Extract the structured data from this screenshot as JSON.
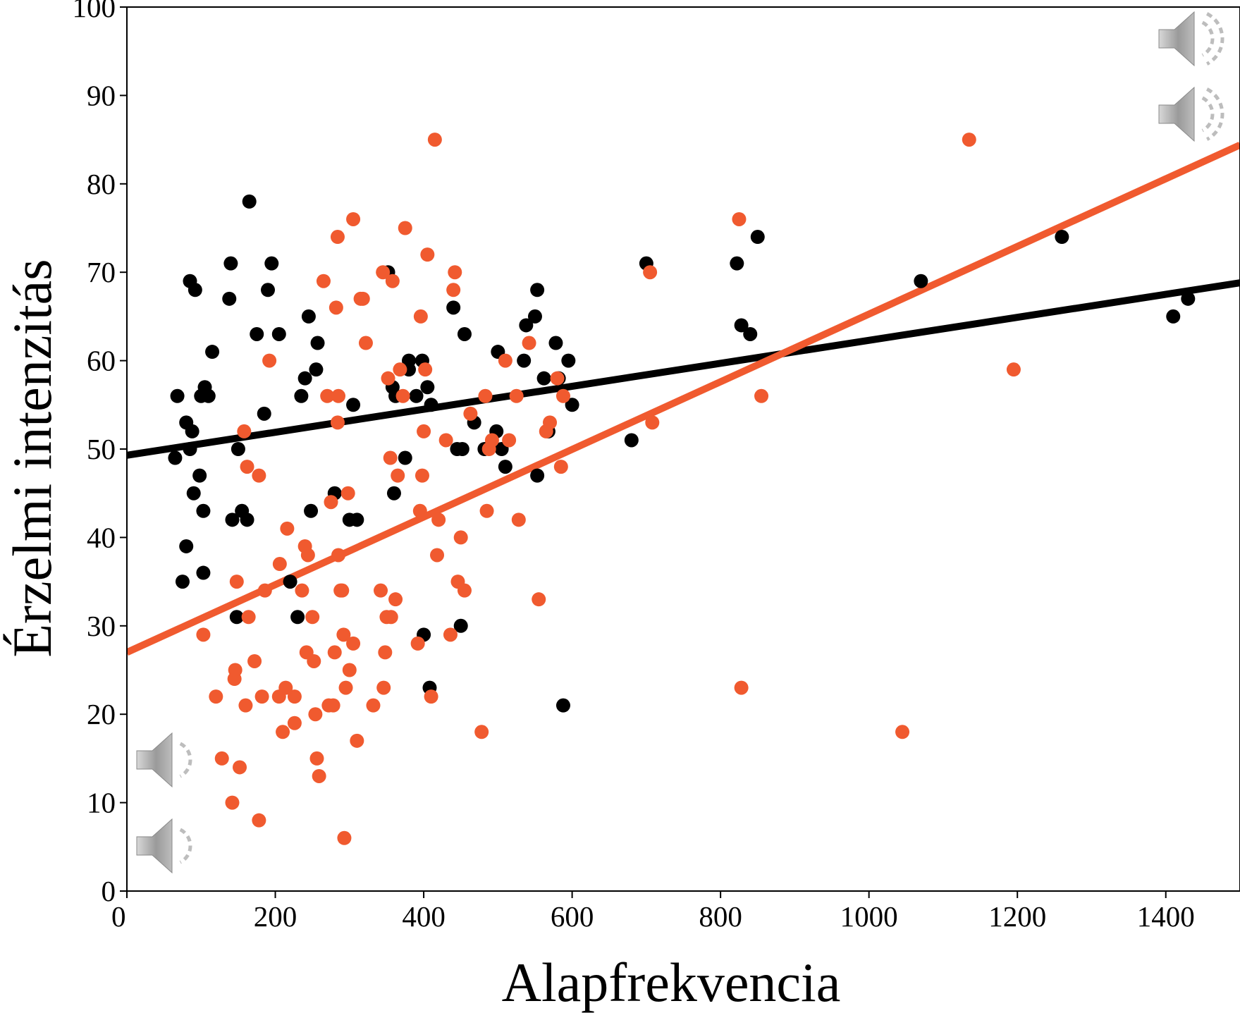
{
  "chart_data": {
    "type": "scatter",
    "xlabel": "Alapfrekvencia",
    "ylabel": "Érzelmi intenzitás",
    "xlim": [
      0,
      1500
    ],
    "ylim": [
      0,
      100
    ],
    "xticks": [
      "0",
      "200",
      "400",
      "600",
      "800",
      "1000",
      "1200",
      "1400"
    ],
    "yticks": [
      "0",
      "10",
      "20",
      "30",
      "40",
      "50",
      "60",
      "70",
      "80",
      "90",
      "100"
    ],
    "grid": false,
    "legend": "none",
    "colors": {
      "black_series": "#000000",
      "orange_series": "#f05a2f",
      "icon": "#a8a8a8"
    },
    "icons": [
      "speaker-loud-icon",
      "speaker-loud-icon",
      "speaker-quiet-icon",
      "speaker-quiet-icon"
    ],
    "series": [
      {
        "color": "#000000",
        "points": [
          [
            65,
            49
          ],
          [
            68,
            56
          ],
          [
            80,
            39
          ],
          [
            75,
            35
          ],
          [
            80,
            53
          ],
          [
            85,
            50
          ],
          [
            88,
            52
          ],
          [
            85,
            69
          ],
          [
            90,
            45
          ],
          [
            92,
            68
          ],
          [
            98,
            47
          ],
          [
            100,
            56
          ],
          [
            103,
            43
          ],
          [
            105,
            57
          ],
          [
            103,
            36
          ],
          [
            110,
            56
          ],
          [
            115,
            61
          ],
          [
            140,
            71
          ],
          [
            138,
            67
          ],
          [
            142,
            42
          ],
          [
            148,
            31
          ],
          [
            150,
            50
          ],
          [
            155,
            43
          ],
          [
            162,
            42
          ],
          [
            165,
            78
          ],
          [
            175,
            63
          ],
          [
            185,
            54
          ],
          [
            190,
            68
          ],
          [
            195,
            71
          ],
          [
            205,
            63
          ],
          [
            220,
            35
          ],
          [
            230,
            31
          ],
          [
            235,
            56
          ],
          [
            240,
            58
          ],
          [
            245,
            65
          ],
          [
            248,
            43
          ],
          [
            255,
            59
          ],
          [
            257,
            62
          ],
          [
            280,
            45
          ],
          [
            300,
            42
          ],
          [
            305,
            55
          ],
          [
            310,
            42
          ],
          [
            352,
            70
          ],
          [
            358,
            57
          ],
          [
            360,
            45
          ],
          [
            362,
            56
          ],
          [
            375,
            49
          ],
          [
            380,
            60
          ],
          [
            380,
            59
          ],
          [
            390,
            56
          ],
          [
            398,
            60
          ],
          [
            400,
            29
          ],
          [
            405,
            57
          ],
          [
            408,
            23
          ],
          [
            410,
            55
          ],
          [
            440,
            66
          ],
          [
            445,
            50
          ],
          [
            450,
            30
          ],
          [
            452,
            50
          ],
          [
            455,
            63
          ],
          [
            468,
            53
          ],
          [
            482,
            50
          ],
          [
            498,
            52
          ],
          [
            500,
            61
          ],
          [
            505,
            50
          ],
          [
            510,
            48
          ],
          [
            535,
            60
          ],
          [
            538,
            64
          ],
          [
            550,
            65
          ],
          [
            553,
            47
          ],
          [
            553,
            68
          ],
          [
            562,
            58
          ],
          [
            568,
            52
          ],
          [
            578,
            62
          ],
          [
            582,
            58
          ],
          [
            588,
            21
          ],
          [
            595,
            60
          ],
          [
            600,
            55
          ],
          [
            680,
            51
          ],
          [
            700,
            71
          ],
          [
            822,
            71
          ],
          [
            828,
            64
          ],
          [
            840,
            63
          ],
          [
            850,
            74
          ],
          [
            1070,
            69
          ],
          [
            1260,
            74
          ],
          [
            1410,
            65
          ],
          [
            1430,
            67
          ]
        ],
        "trend": [
          [
            0,
            49.3
          ],
          [
            1500,
            68.8
          ]
        ]
      },
      {
        "color": "#f05a2f",
        "points": [
          [
            103,
            29
          ],
          [
            120,
            22
          ],
          [
            128,
            15
          ],
          [
            142,
            10
          ],
          [
            145,
            24
          ],
          [
            146,
            25
          ],
          [
            148,
            35
          ],
          [
            152,
            14
          ],
          [
            158,
            52
          ],
          [
            160,
            21
          ],
          [
            162,
            48
          ],
          [
            164,
            31
          ],
          [
            172,
            26
          ],
          [
            178,
            47
          ],
          [
            178,
            8
          ],
          [
            182,
            22
          ],
          [
            186,
            34
          ],
          [
            192,
            60
          ],
          [
            205,
            22
          ],
          [
            206,
            37
          ],
          [
            210,
            18
          ],
          [
            214,
            23
          ],
          [
            216,
            41
          ],
          [
            226,
            22
          ],
          [
            226,
            19
          ],
          [
            236,
            34
          ],
          [
            240,
            39
          ],
          [
            242,
            27
          ],
          [
            244,
            38
          ],
          [
            250,
            31
          ],
          [
            252,
            26
          ],
          [
            254,
            20
          ],
          [
            256,
            15
          ],
          [
            259,
            13
          ],
          [
            265,
            69
          ],
          [
            270,
            56
          ],
          [
            272,
            21
          ],
          [
            275,
            44
          ],
          [
            278,
            21
          ],
          [
            280,
            27
          ],
          [
            282,
            66
          ],
          [
            284,
            74
          ],
          [
            284,
            53
          ],
          [
            285,
            56
          ],
          [
            285,
            38
          ],
          [
            288,
            34
          ],
          [
            290,
            34
          ],
          [
            292,
            29
          ],
          [
            293,
            6
          ],
          [
            295,
            23
          ],
          [
            298,
            45
          ],
          [
            300,
            25
          ],
          [
            305,
            76
          ],
          [
            305,
            28
          ],
          [
            310,
            17
          ],
          [
            315,
            67
          ],
          [
            318,
            67
          ],
          [
            322,
            62
          ],
          [
            332,
            21
          ],
          [
            342,
            34
          ],
          [
            345,
            70
          ],
          [
            346,
            23
          ],
          [
            348,
            27
          ],
          [
            350,
            31
          ],
          [
            352,
            58
          ],
          [
            355,
            49
          ],
          [
            356,
            31
          ],
          [
            358,
            69
          ],
          [
            362,
            33
          ],
          [
            365,
            47
          ],
          [
            368,
            59
          ],
          [
            372,
            56
          ],
          [
            375,
            75
          ],
          [
            392,
            28
          ],
          [
            395,
            43
          ],
          [
            396,
            65
          ],
          [
            398,
            47
          ],
          [
            400,
            52
          ],
          [
            402,
            59
          ],
          [
            405,
            72
          ],
          [
            410,
            22
          ],
          [
            415,
            85
          ],
          [
            418,
            38
          ],
          [
            420,
            42
          ],
          [
            430,
            51
          ],
          [
            436,
            29
          ],
          [
            440,
            68
          ],
          [
            442,
            70
          ],
          [
            446,
            35
          ],
          [
            450,
            40
          ],
          [
            455,
            34
          ],
          [
            463,
            54
          ],
          [
            478,
            18
          ],
          [
            483,
            56
          ],
          [
            485,
            43
          ],
          [
            488,
            50
          ],
          [
            492,
            51
          ],
          [
            510,
            60
          ],
          [
            515,
            51
          ],
          [
            525,
            56
          ],
          [
            528,
            42
          ],
          [
            542,
            62
          ],
          [
            555,
            33
          ],
          [
            565,
            52
          ],
          [
            570,
            53
          ],
          [
            580,
            58
          ],
          [
            585,
            48
          ],
          [
            588,
            56
          ],
          [
            705,
            70
          ],
          [
            708,
            53
          ],
          [
            825,
            76
          ],
          [
            828,
            23
          ],
          [
            855,
            56
          ],
          [
            1045,
            18
          ],
          [
            1135,
            85
          ],
          [
            1195,
            59
          ]
        ],
        "trend": [
          [
            0,
            27.0
          ],
          [
            1500,
            84.4
          ]
        ]
      }
    ]
  }
}
